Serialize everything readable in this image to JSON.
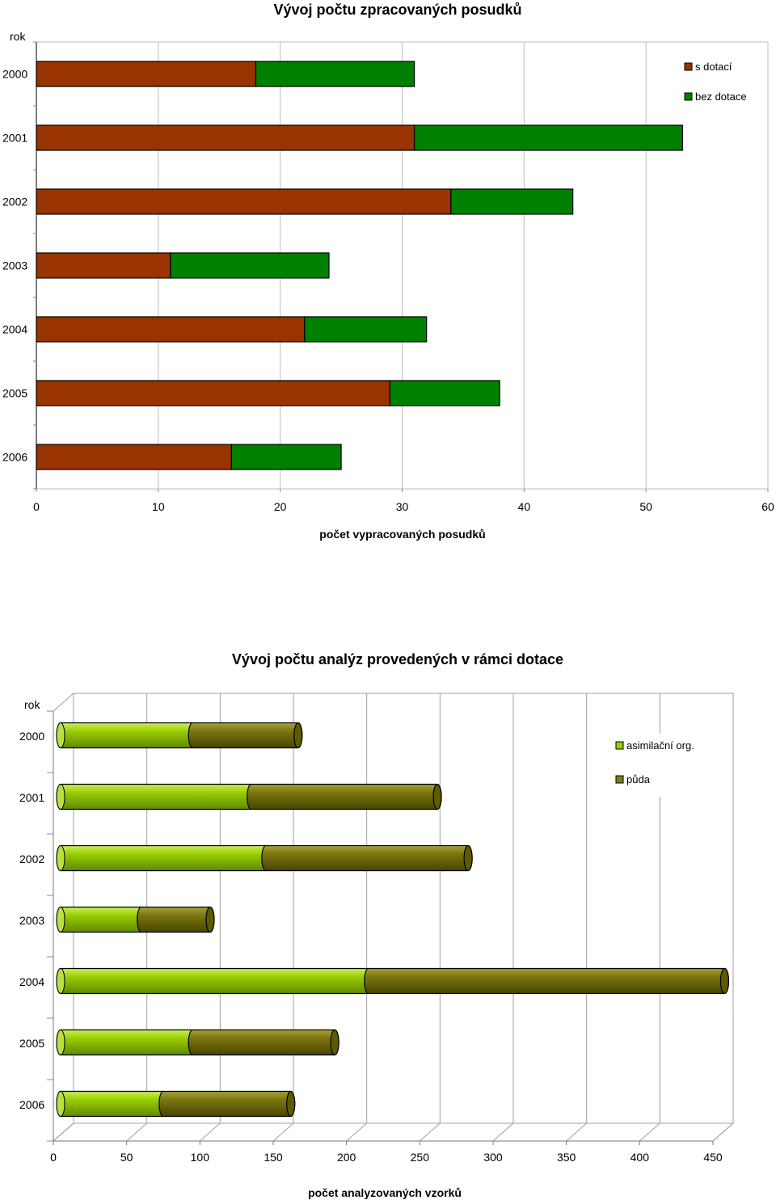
{
  "chart_data": [
    {
      "type": "bar",
      "orientation": "horizontal",
      "stacked": true,
      "title": "Vývoj počtu zpracovaných posudků",
      "xlabel": "počet vypracovaných posudků",
      "ylabel": "rok",
      "categories": [
        "2000",
        "2001",
        "2002",
        "2003",
        "2004",
        "2005",
        "2006"
      ],
      "series": [
        {
          "name": "s dotací",
          "values": [
            18,
            31,
            34,
            11,
            22,
            29,
            16
          ],
          "color": "#993300"
        },
        {
          "name": "bez dotace",
          "values": [
            13,
            22,
            10,
            13,
            10,
            9,
            9
          ],
          "color": "#008000"
        }
      ],
      "xlim": [
        0,
        60
      ],
      "xticks": [
        0,
        10,
        20,
        30,
        40,
        50,
        60
      ],
      "grid": true,
      "legend": "top-right"
    },
    {
      "type": "bar",
      "orientation": "horizontal",
      "stacked": true,
      "style": "3d-cylinder",
      "title": "Vývoj počtu analýz provedených v rámci dotace",
      "xlabel": "počet analyzovaných vzorků",
      "ylabel": "rok",
      "categories": [
        "2000",
        "2001",
        "2002",
        "2003",
        "2004",
        "2005",
        "2006"
      ],
      "series": [
        {
          "name": "asimilační org.",
          "values": [
            90,
            130,
            140,
            55,
            210,
            90,
            70
          ],
          "color": "#99CC00"
        },
        {
          "name": "půda",
          "values": [
            72,
            127,
            138,
            47,
            243,
            97,
            87
          ],
          "color": "#808000"
        }
      ],
      "xlim": [
        0,
        450
      ],
      "xticks": [
        0,
        50,
        100,
        150,
        200,
        250,
        300,
        350,
        400,
        450
      ],
      "grid": true,
      "legend": "top-right"
    }
  ]
}
